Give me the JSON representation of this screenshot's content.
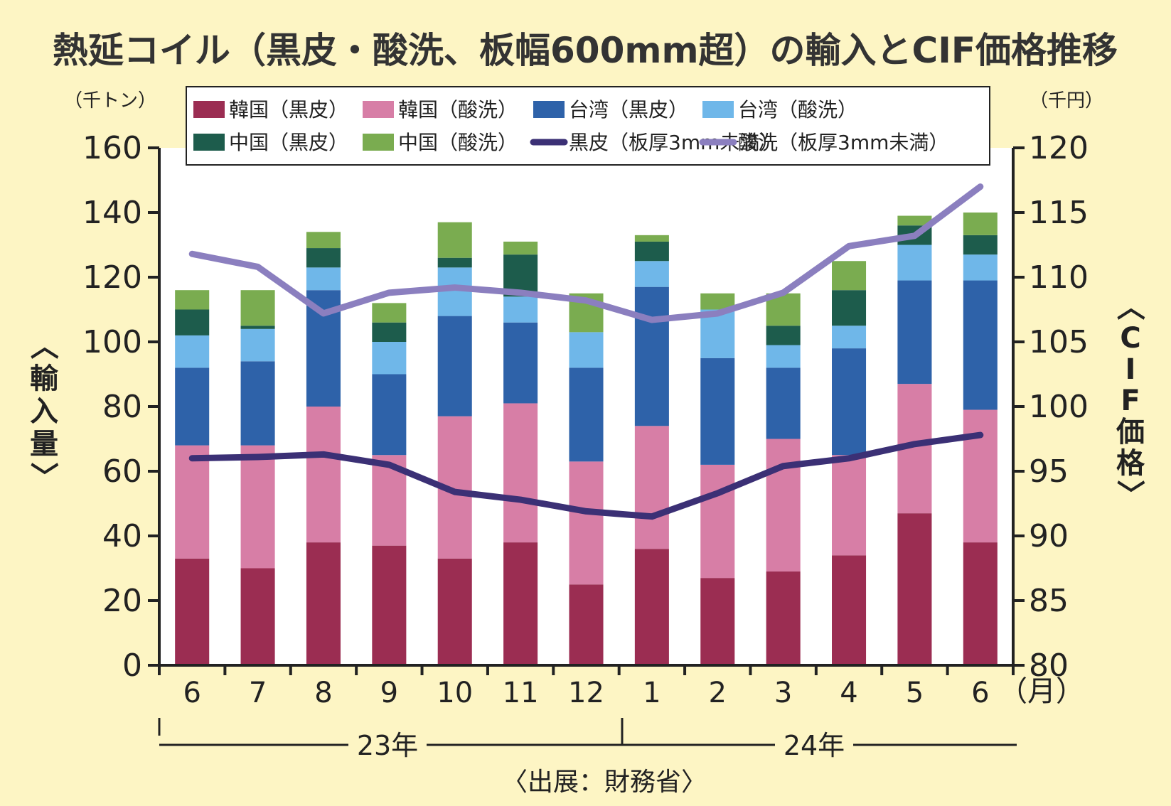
{
  "title": "熱延コイル（黒皮・酸洗、板幅600mm超）の輸入とCIF価格推移",
  "left_unit": "（千トン）",
  "right_unit": "（千円）",
  "left_axis_label": "〈輸入量〉",
  "right_axis_label": "〈CIF価格〉",
  "month_unit": "（月）",
  "year_labels": [
    "23年",
    "24年"
  ],
  "source": "〈出展：財務省〉",
  "chart_data": {
    "type": "bar",
    "stacked": true,
    "categories": [
      "6",
      "7",
      "8",
      "9",
      "10",
      "11",
      "12",
      "1",
      "2",
      "3",
      "4",
      "5",
      "6"
    ],
    "ylim_left": [
      0,
      160
    ],
    "ylim_right": [
      80,
      120
    ],
    "yticks_left": [
      "0",
      "20",
      "40",
      "60",
      "80",
      "100",
      "120",
      "140",
      "160"
    ],
    "yticks_right": [
      "80",
      "85",
      "90",
      "95",
      "100",
      "105",
      "110",
      "115",
      "120"
    ],
    "series": [
      {
        "name": "韓国（黒皮）",
        "color": "#9b2d52",
        "values": [
          33,
          30,
          38,
          37,
          33,
          38,
          25,
          36,
          27,
          29,
          34,
          47,
          38
        ]
      },
      {
        "name": "韓国（酸洗）",
        "color": "#d77ea6",
        "values": [
          35,
          38,
          42,
          28,
          44,
          43,
          38,
          38,
          35,
          41,
          31,
          40,
          41
        ]
      },
      {
        "name": "台湾（黒皮）",
        "color": "#2e62a9",
        "values": [
          24,
          26,
          36,
          25,
          31,
          25,
          29,
          43,
          33,
          22,
          33,
          32,
          40
        ]
      },
      {
        "name": "台湾（酸洗）",
        "color": "#6fb7e9",
        "values": [
          10,
          10,
          7,
          10,
          15,
          8,
          11,
          8,
          15,
          7,
          7,
          11,
          8
        ]
      },
      {
        "name": "中国（黒皮）",
        "color": "#1d5c4c",
        "values": [
          8,
          1,
          6,
          6,
          3,
          13,
          0,
          6,
          0,
          6,
          11,
          6,
          6
        ]
      },
      {
        "name": "中国（酸洗）",
        "color": "#7aac50",
        "values": [
          6,
          11,
          5,
          6,
          11,
          4,
          12,
          2,
          5,
          10,
          9,
          3,
          7
        ]
      }
    ],
    "lines": [
      {
        "name": "黒皮（板厚3mm未満）",
        "color": "#3b3075",
        "axis": "right",
        "values": [
          96.0,
          96.1,
          96.3,
          95.5,
          93.4,
          92.8,
          91.9,
          91.5,
          93.3,
          95.4,
          96.0,
          97.1,
          97.8
        ]
      },
      {
        "name": "酸洗（板厚3mm未満）",
        "color": "#8b7fbf",
        "axis": "right",
        "values": [
          111.8,
          110.8,
          107.2,
          108.8,
          109.2,
          108.8,
          108.2,
          106.7,
          107.2,
          108.8,
          112.4,
          113.2,
          117.0
        ]
      }
    ]
  }
}
